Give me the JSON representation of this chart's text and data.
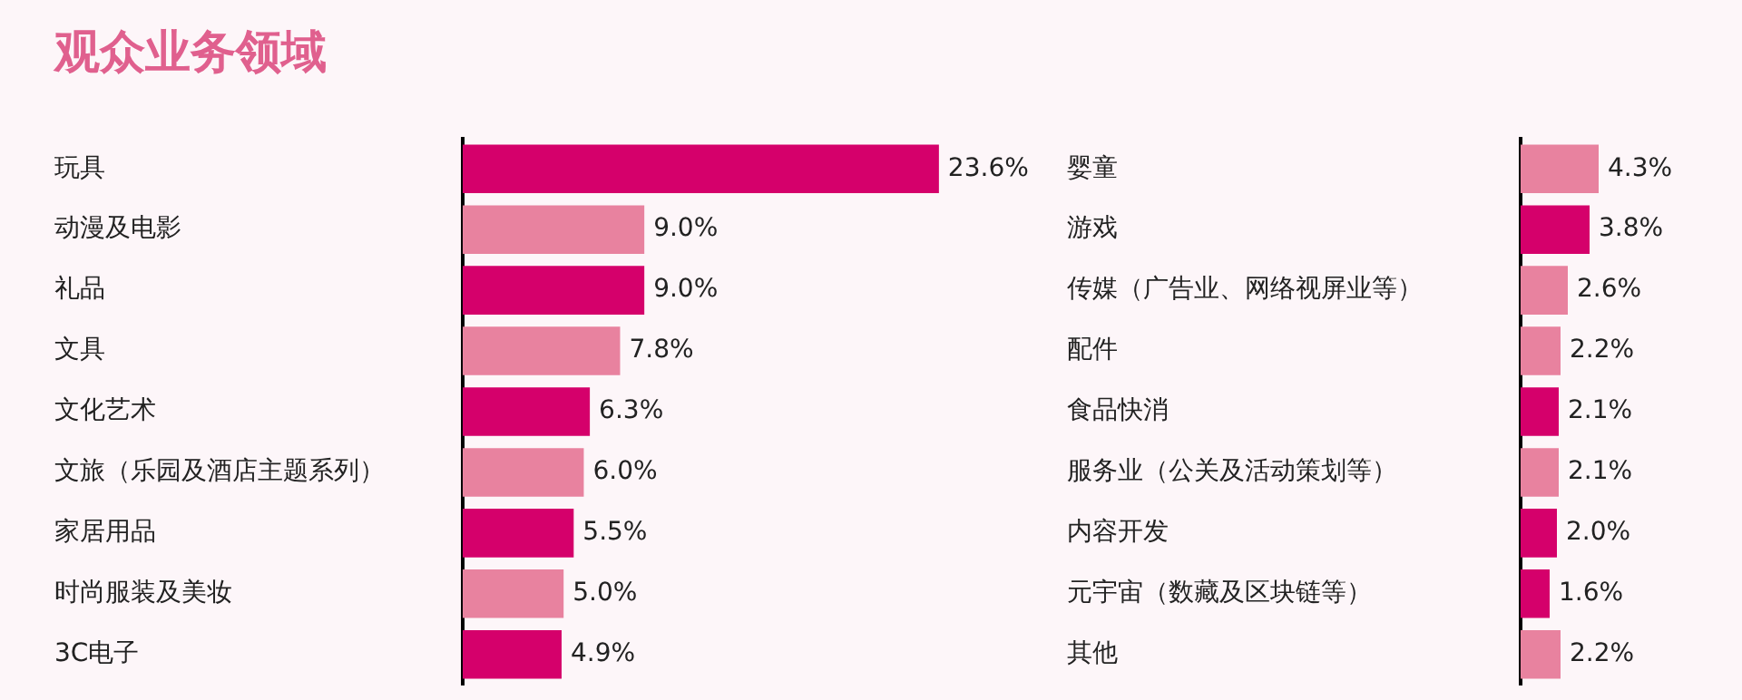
{
  "chart_data": [
    {
      "type": "bar",
      "title": "观众业务领域",
      "orientation": "horizontal",
      "tick_labels": "y",
      "categories": [
        "玩具",
        "动漫及电影",
        "礼品",
        "文具",
        "文化艺术",
        "文旅（乐园及酒店主题系列）",
        "家居用品",
        "时尚服装及美妆",
        "3C电子"
      ],
      "values": [
        23.6,
        9.0,
        9.0,
        7.8,
        6.3,
        6.0,
        5.5,
        5.0,
        4.9
      ],
      "value_labels": [
        "23.6%",
        "9.0%",
        "9.0%",
        "7.8%",
        "6.3%",
        "6.0%",
        "5.5%",
        "5.0%",
        "4.9%"
      ],
      "colors": [
        "#d5006b",
        "#e8829f",
        "#d5006b",
        "#e8829f",
        "#d5006b",
        "#e8829f",
        "#d5006b",
        "#e8829f",
        "#d5006b"
      ]
    },
    {
      "type": "bar",
      "orientation": "horizontal",
      "tick_labels": "y",
      "categories": [
        "婴童",
        "游戏",
        "传媒（广告业、网络视屏业等）",
        "配件",
        "食品快消",
        "服务业（公关及活动策划等）",
        "内容开发",
        "元宇宙（数藏及区块链等）",
        "其他"
      ],
      "values": [
        4.3,
        3.8,
        2.6,
        2.2,
        2.1,
        2.1,
        2.0,
        1.6,
        2.2
      ],
      "value_labels": [
        "4.3%",
        "3.8%",
        "2.6%",
        "2.2%",
        "2.1%",
        "2.1%",
        "2.0%",
        "1.6%",
        "2.2%"
      ],
      "colors": [
        "#e8829f",
        "#d5006b",
        "#e8829f",
        "#e8829f",
        "#d5006b",
        "#e8829f",
        "#d5006b",
        "#d5006b",
        "#e8829f"
      ]
    }
  ]
}
